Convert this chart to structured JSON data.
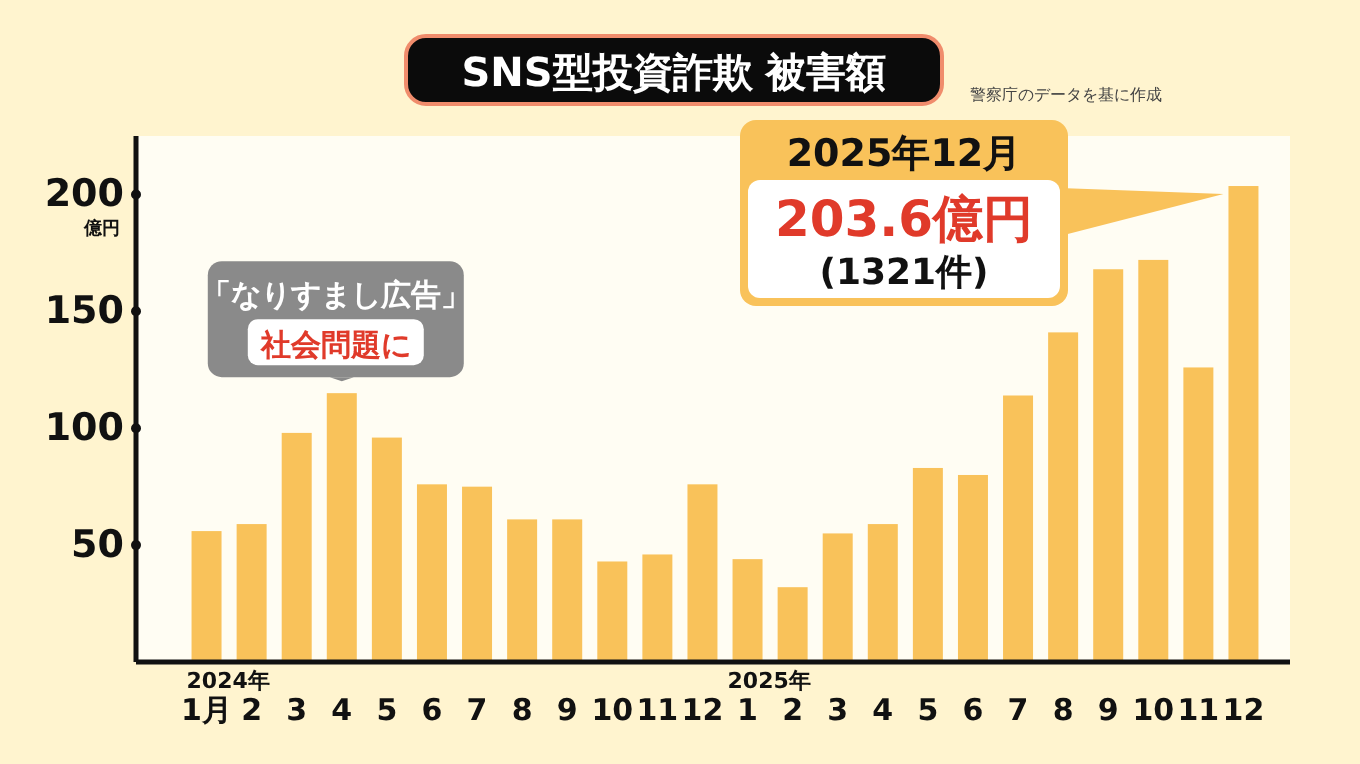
{
  "chart_data": {
    "type": "bar",
    "title": "SNS型投資詐欺 被害額",
    "ylabel": "億円",
    "categories": [
      "2024年\n1月",
      "2",
      "3",
      "4",
      "5",
      "6",
      "7",
      "8",
      "9",
      "10",
      "11",
      "12",
      "2025年\n1",
      "2",
      "3",
      "4",
      "5",
      "6",
      "7",
      "8",
      "9",
      "10",
      "11",
      "12"
    ],
    "values": [
      56,
      59,
      98,
      115,
      96,
      76,
      75,
      61,
      61,
      43,
      46,
      76,
      44,
      32,
      55,
      59,
      83,
      80,
      114,
      141,
      168,
      172,
      126,
      203.6
    ],
    "color": "#f9c25a",
    "ylim": [
      0,
      225
    ],
    "yticks": [
      50,
      100,
      150,
      200
    ],
    "grid": false,
    "annotations": [
      "警察庁のデータを基に作成",
      {
        "text": "「なりすまし広告」",
        "x": "4",
        "y": 115
      },
      {
        "text": "社会問題に",
        "x": "4",
        "y": 115
      },
      "2025年12月",
      "203.6億円",
      "(1321件)"
    ]
  }
}
